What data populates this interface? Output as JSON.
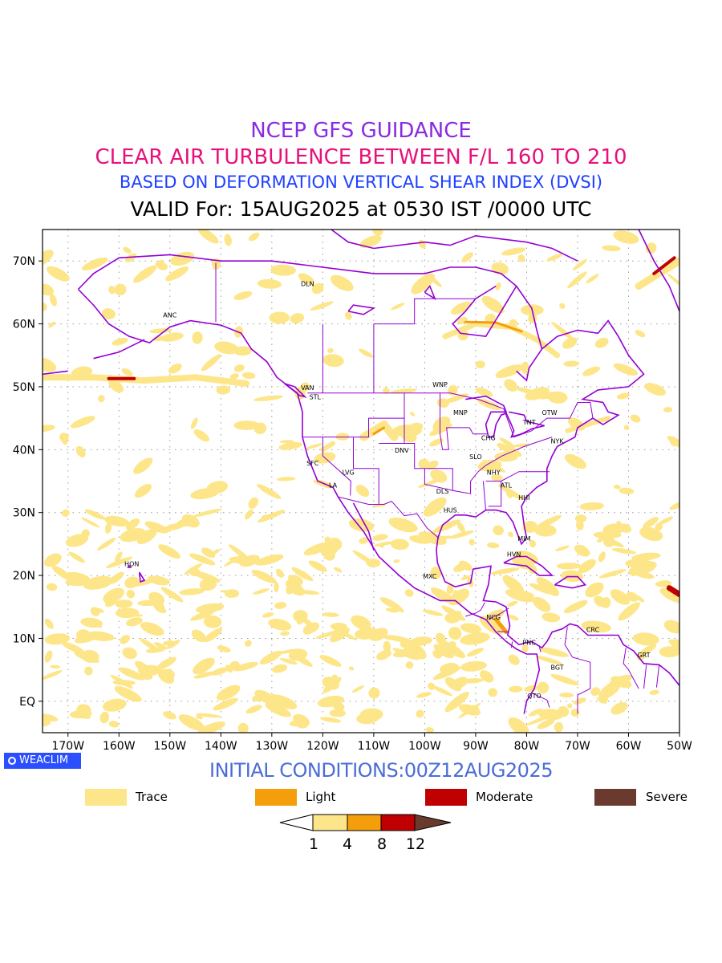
{
  "header": {
    "line1": "NCEP GFS GUIDANCE",
    "line2": "CLEAR AIR TURBULENCE BETWEEN F/L 160 TO 210",
    "line3": "BASED ON DEFORMATION VERTICAL SHEAR INDEX (DVSI)",
    "line4": "VALID For: 15AUG2025 at 0530 IST /0000 UTC"
  },
  "colors": {
    "line1": "#8a2be2",
    "line2": "#e6127a",
    "line3": "#1e40ff",
    "line4": "#000000",
    "trace": "#fde68a",
    "light": "#f59e0b",
    "moderate": "#c00000",
    "severe": "#6b3a2e",
    "coast": "#9400d3",
    "init": "#4a6cd8",
    "badge": "#2b4fff"
  },
  "map": {
    "x_ticks": [
      "170W",
      "160W",
      "150W",
      "140W",
      "130W",
      "120W",
      "110W",
      "100W",
      "90W",
      "80W",
      "70W",
      "60W",
      "50W"
    ],
    "y_ticks": [
      "70N",
      "60N",
      "50N",
      "40N",
      "30N",
      "20N",
      "10N",
      "EQ"
    ],
    "cities": [
      {
        "name": "ANC",
        "lon": -150,
        "lat": 61
      },
      {
        "name": "HON",
        "lon": -157.5,
        "lat": 21.5
      },
      {
        "name": "DLN",
        "lon": -123,
        "lat": 66
      },
      {
        "name": "VAN",
        "lon": -123,
        "lat": 49.5
      },
      {
        "name": "STL",
        "lon": -121.5,
        "lat": 48
      },
      {
        "name": "SFC",
        "lon": -122,
        "lat": 37.5
      },
      {
        "name": "LA",
        "lon": -118,
        "lat": 34
      },
      {
        "name": "LVG",
        "lon": -115,
        "lat": 36
      },
      {
        "name": "DNV",
        "lon": -104.5,
        "lat": 39.5
      },
      {
        "name": "WNP",
        "lon": -97,
        "lat": 50
      },
      {
        "name": "MNP",
        "lon": -93,
        "lat": 45.5
      },
      {
        "name": "CHG",
        "lon": -87.5,
        "lat": 41.5
      },
      {
        "name": "SLO",
        "lon": -90,
        "lat": 38.5
      },
      {
        "name": "NHY",
        "lon": -86.5,
        "lat": 36
      },
      {
        "name": "ATL",
        "lon": -84,
        "lat": 34
      },
      {
        "name": "HHI",
        "lon": -80.5,
        "lat": 32
      },
      {
        "name": "DLS",
        "lon": -96.5,
        "lat": 33
      },
      {
        "name": "HUS",
        "lon": -95,
        "lat": 30
      },
      {
        "name": "TNT",
        "lon": -79.5,
        "lat": 44
      },
      {
        "name": "OTW",
        "lon": -75.5,
        "lat": 45.5
      },
      {
        "name": "NYK",
        "lon": -74,
        "lat": 41
      },
      {
        "name": "MIM",
        "lon": -80.5,
        "lat": 25.5
      },
      {
        "name": "HVN",
        "lon": -82.5,
        "lat": 23
      },
      {
        "name": "MXC",
        "lon": -99,
        "lat": 19.5
      },
      {
        "name": "NCG",
        "lon": -86.5,
        "lat": 13
      },
      {
        "name": "PNC",
        "lon": -79.5,
        "lat": 9
      },
      {
        "name": "BGT",
        "lon": -74,
        "lat": 5
      },
      {
        "name": "QTO",
        "lon": -78.5,
        "lat": 0.5
      },
      {
        "name": "CRC",
        "lon": -67,
        "lat": 11
      },
      {
        "name": "GRT",
        "lon": -57,
        "lat": 7
      }
    ]
  },
  "badge": {
    "label": "WEACLIM"
  },
  "footer": {
    "initial_conditions": "INITIAL CONDITIONS:00Z12AUG2025"
  },
  "legend": [
    {
      "label": "Trace",
      "color": "#fde68a"
    },
    {
      "label": "Light",
      "color": "#f59e0b"
    },
    {
      "label": "Moderate",
      "color": "#c00000"
    },
    {
      "label": "Severe",
      "color": "#6b3a2e"
    }
  ],
  "colorbar": {
    "levels": [
      "1",
      "4",
      "8",
      "12"
    ]
  }
}
